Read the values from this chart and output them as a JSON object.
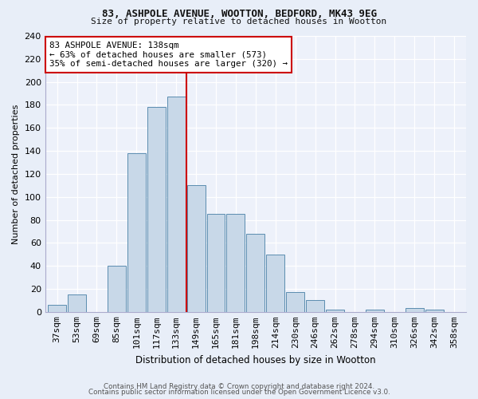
{
  "title1": "83, ASHPOLE AVENUE, WOOTTON, BEDFORD, MK43 9EG",
  "title2": "Size of property relative to detached houses in Wootton",
  "xlabel": "Distribution of detached houses by size in Wootton",
  "ylabel": "Number of detached properties",
  "bin_labels": [
    "37sqm",
    "53sqm",
    "69sqm",
    "85sqm",
    "101sqm",
    "117sqm",
    "133sqm",
    "149sqm",
    "165sqm",
    "181sqm",
    "198sqm",
    "214sqm",
    "230sqm",
    "246sqm",
    "262sqm",
    "278sqm",
    "294sqm",
    "310sqm",
    "326sqm",
    "342sqm",
    "358sqm"
  ],
  "bar_values": [
    6,
    15,
    0,
    40,
    138,
    178,
    187,
    110,
    85,
    85,
    68,
    50,
    17,
    10,
    2,
    0,
    2,
    0,
    3,
    2,
    0
  ],
  "bar_color": "#c8d8e8",
  "bar_edge_color": "#5b8db0",
  "vline_color": "#cc0000",
  "annotation_text": "83 ASHPOLE AVENUE: 138sqm\n← 63% of detached houses are smaller (573)\n35% of semi-detached houses are larger (320) →",
  "annotation_box_color": "#ffffff",
  "annotation_box_edge": "#cc0000",
  "footer1": "Contains HM Land Registry data © Crown copyright and database right 2024.",
  "footer2": "Contains public sector information licensed under the Open Government Licence v3.0.",
  "ylim": [
    0,
    240
  ],
  "yticks": [
    0,
    20,
    40,
    60,
    80,
    100,
    120,
    140,
    160,
    180,
    200,
    220,
    240
  ],
  "bg_color": "#e8eef8",
  "plot_bg_color": "#edf1fa"
}
